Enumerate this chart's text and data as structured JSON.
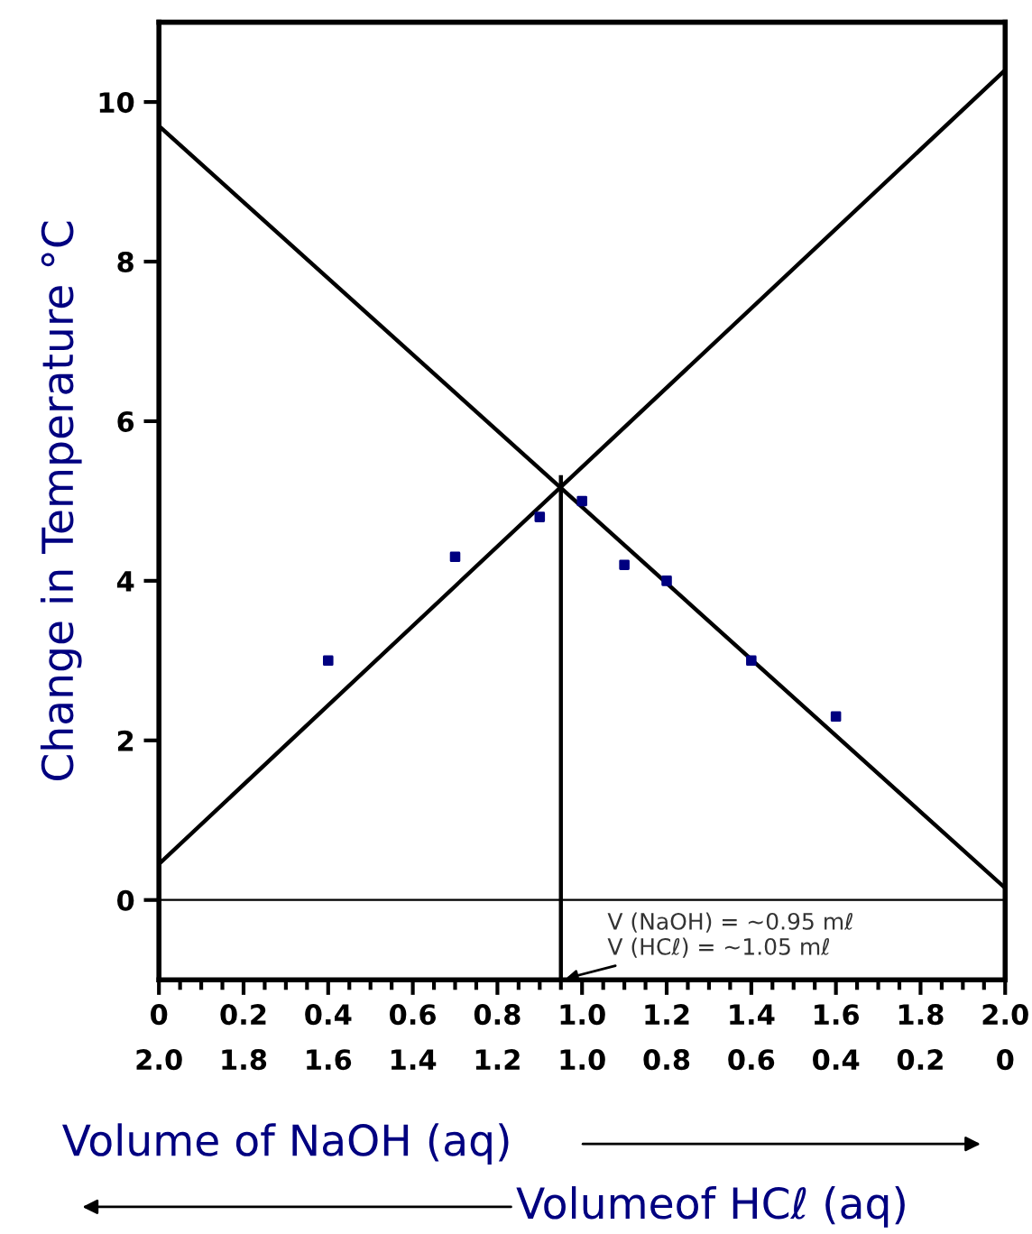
{
  "chart_data": {
    "type": "scatter",
    "xlabel": "Volume of NaOH (aq)",
    "x2label": "Volumeof HCℓ (aq)",
    "ylabel": "Change in Temperature °C",
    "series": [
      {
        "color": "#000080",
        "marker": "square",
        "x": [
          0.4,
          0.7,
          0.9,
          1.0,
          1.1,
          1.2,
          1.4,
          1.6
        ],
        "values": [
          3.0,
          4.3,
          4.8,
          5.0,
          4.2,
          4.0,
          3.0,
          2.3
        ]
      },
      {
        "type": "line",
        "color": "#000000",
        "x": [
          0,
          2.0
        ],
        "values": [
          0.45,
          10.4
        ]
      },
      {
        "type": "line",
        "color": "#000000",
        "x": [
          0,
          2.0
        ],
        "values": [
          9.7,
          0.15
        ]
      },
      {
        "type": "line",
        "color": "#000000",
        "x": [
          0.95,
          0.95
        ],
        "values": [
          -1,
          5.3
        ]
      }
    ],
    "ref_lines": [
      {
        "axis": "y",
        "value": 0,
        "color": "#000000"
      }
    ],
    "annotations": [
      {
        "text": "V (NaOH) = ~0.95 mℓ\nV (HCℓ) = ~1.05 mℓ",
        "x": 0.95,
        "y": -1
      }
    ],
    "xlim": [
      0,
      2.0
    ],
    "ylim": [
      -1,
      11
    ],
    "xticks": [
      0,
      0.2,
      0.4,
      0.6,
      0.8,
      {
        "value": 1.0,
        "label": "1.0"
      },
      1.2,
      1.4,
      1.6,
      1.8,
      {
        "value": 2.0,
        "label": "2.0"
      }
    ],
    "x2lim": [
      2.0,
      0
    ],
    "x2ticks": [
      {
        "value": 2.0,
        "label": "2.0"
      },
      1.8,
      1.6,
      1.4,
      1.2,
      {
        "value": 1.0,
        "label": "1.0"
      },
      0.8,
      0.6,
      0.4,
      0.2,
      0
    ],
    "yticks": [
      0,
      2,
      4,
      6,
      8,
      10
    ],
    "grid": false,
    "legend": false
  }
}
